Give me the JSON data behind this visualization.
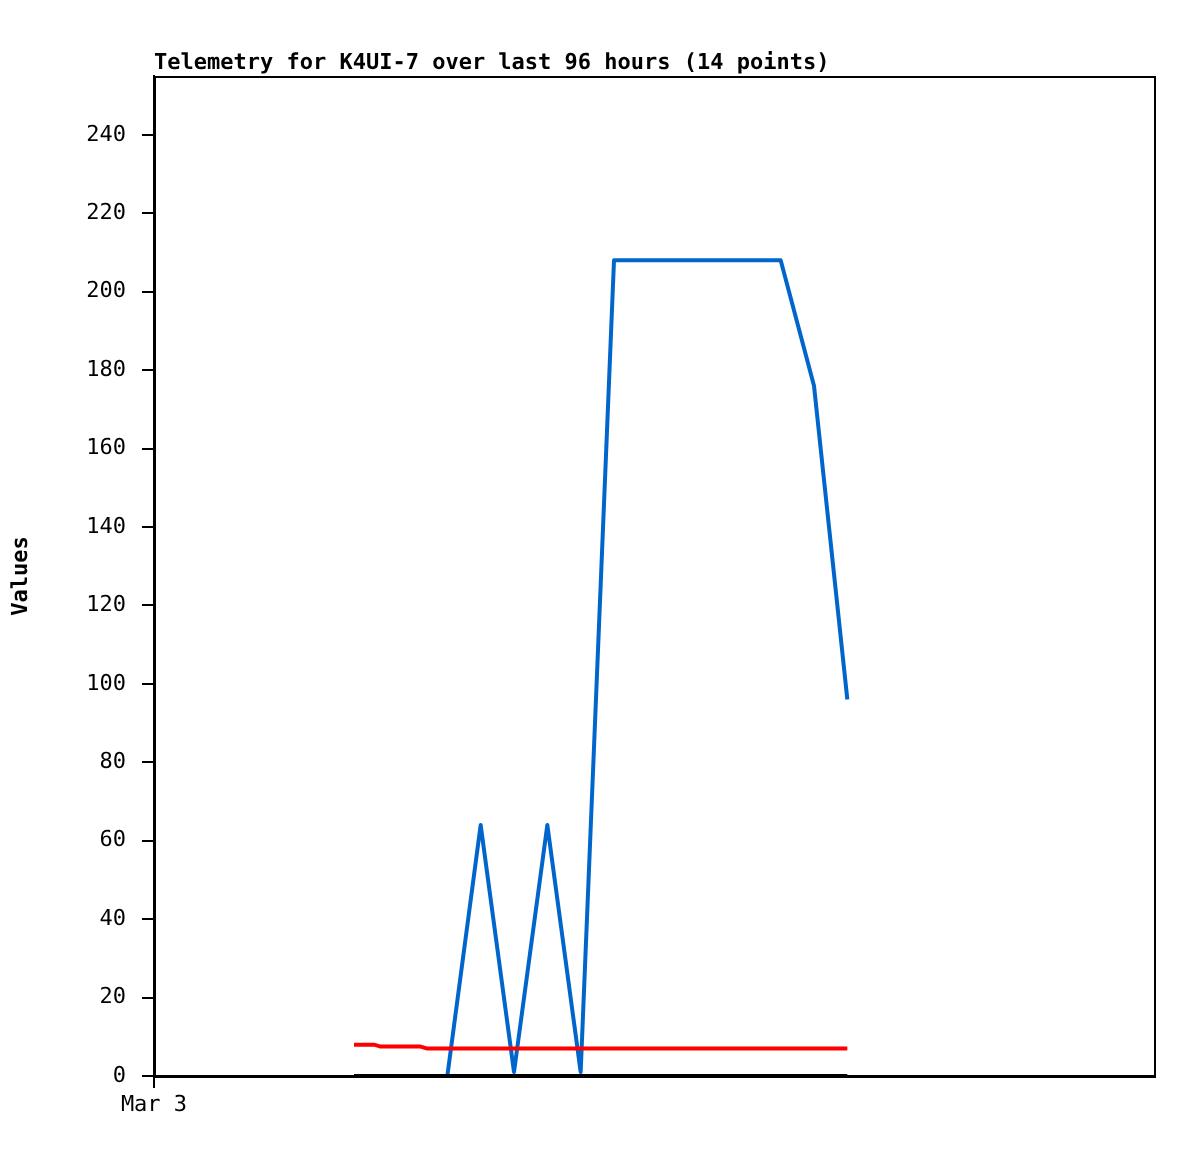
{
  "chart_data": {
    "type": "line",
    "title": "Telemetry for K4UI-7 over last 96 hours (14 points)",
    "ylabel": "Values",
    "categories": [
      "Mar 3",
      null,
      null,
      null,
      null,
      null,
      null,
      null,
      null,
      null,
      null,
      null,
      null,
      null,
      null,
      null,
      null,
      null,
      null,
      null,
      null,
      null,
      null,
      null,
      null,
      null,
      null,
      null,
      null,
      null,
      null,
      null,
      null,
      null,
      null,
      null,
      null,
      null,
      null,
      null,
      null,
      null,
      null,
      null,
      null,
      null,
      null,
      null,
      null,
      null,
      null,
      null,
      null,
      null,
      null,
      null,
      null,
      null,
      null,
      null,
      null,
      null,
      null,
      null,
      null,
      null,
      null,
      null,
      null,
      null,
      null,
      null,
      null,
      null,
      null,
      null,
      null,
      null,
      null,
      null,
      null,
      null,
      null,
      null,
      null,
      null,
      null,
      null,
      null,
      null,
      null,
      null,
      null,
      null,
      null,
      null,
      null,
      null,
      null,
      null,
      null,
      null,
      null,
      null,
      null,
      null,
      null,
      null,
      null,
      null,
      null,
      null,
      null,
      null,
      null,
      null,
      null,
      null,
      null,
      null,
      null,
      null,
      null,
      null,
      null,
      null,
      null,
      null,
      null,
      null,
      null,
      null,
      null,
      null,
      null,
      null,
      null,
      null,
      null,
      null,
      null,
      null,
      null,
      null,
      null,
      null,
      null,
      null,
      null,
      null,
      null
    ],
    "ylim": [
      0,
      255
    ],
    "yticks": [
      0,
      20,
      40,
      60,
      80,
      100,
      120,
      140,
      160,
      180,
      200,
      220,
      240
    ],
    "grid": false,
    "legend": false,
    "marker": "none",
    "line_style": "solid",
    "series": [
      {
        "color": "#000000",
        "values": [
          null,
          null,
          null,
          null,
          null,
          null,
          null,
          null,
          null,
          null,
          null,
          null,
          null,
          null,
          null,
          null,
          null,
          null,
          null,
          null,
          null,
          null,
          null,
          null,
          null,
          null,
          null,
          null,
          null,
          null,
          0,
          0,
          0,
          0,
          0,
          0,
          0,
          0,
          0,
          0,
          0,
          0,
          0,
          0,
          0,
          0,
          0,
          0,
          0,
          0,
          0,
          0,
          0,
          0,
          0,
          0,
          0,
          0,
          0,
          0,
          0,
          0,
          0,
          0,
          0,
          0,
          0,
          0,
          0,
          0,
          0,
          0,
          0,
          0,
          0,
          0,
          0,
          0,
          0,
          0,
          0,
          0,
          0,
          0,
          0,
          0,
          0,
          0,
          0,
          0,
          0,
          0,
          0,
          0,
          0,
          0,
          0,
          0,
          0,
          0,
          0,
          0,
          0,
          0,
          0,
          null,
          null,
          null,
          null,
          null,
          null,
          null,
          null,
          null,
          null,
          null,
          null,
          null,
          null,
          null,
          null,
          null,
          null,
          null,
          null,
          null,
          null,
          null,
          null,
          null,
          null,
          null,
          null,
          null,
          null,
          null,
          null,
          null,
          null,
          null,
          null,
          null,
          null,
          null,
          null,
          null,
          null,
          null,
          null,
          null,
          null
        ]
      },
      {
        "color": "#ff0000",
        "values": [
          null,
          null,
          null,
          null,
          null,
          null,
          null,
          null,
          null,
          null,
          null,
          null,
          null,
          null,
          null,
          null,
          null,
          null,
          null,
          null,
          null,
          null,
          null,
          null,
          null,
          null,
          null,
          null,
          null,
          null,
          8,
          8,
          8,
          8,
          7.5,
          7.5,
          7.5,
          7.5,
          7.5,
          7.5,
          7.5,
          7,
          7,
          7,
          7,
          7,
          7,
          7,
          7,
          7,
          7,
          7,
          7,
          7,
          7,
          7,
          7,
          7,
          7,
          7,
          7,
          7,
          7,
          7,
          7,
          7,
          7,
          7,
          7,
          7,
          7,
          7,
          7,
          7,
          7,
          7,
          7,
          7,
          7,
          7,
          7,
          7,
          7,
          7,
          7,
          7,
          7,
          7,
          7,
          7,
          7,
          7,
          7,
          7,
          7,
          7,
          7,
          7,
          7,
          7,
          7,
          7,
          7,
          7,
          7,
          null,
          null,
          null,
          null,
          null,
          null,
          null,
          null,
          null,
          null,
          null,
          null,
          null,
          null,
          null,
          null,
          null,
          null,
          null,
          null,
          null,
          null,
          null,
          null,
          null,
          null,
          null,
          null,
          null,
          null,
          null,
          null,
          null,
          null,
          null,
          null,
          null,
          null,
          null,
          null,
          null,
          null,
          null,
          null,
          null,
          null
        ]
      },
      {
        "color": "#0066cc",
        "values": [
          null,
          null,
          null,
          null,
          null,
          null,
          null,
          null,
          null,
          null,
          null,
          null,
          null,
          null,
          null,
          null,
          null,
          null,
          null,
          null,
          null,
          null,
          null,
          null,
          null,
          null,
          null,
          null,
          null,
          null,
          null,
          null,
          null,
          null,
          null,
          null,
          null,
          null,
          null,
          null,
          null,
          null,
          null,
          null,
          0,
          null,
          null,
          null,
          null,
          64,
          null,
          null,
          null,
          null,
          1,
          null,
          null,
          null,
          null,
          64,
          null,
          null,
          null,
          null,
          1,
          null,
          null,
          null,
          null,
          208,
          null,
          null,
          null,
          null,
          208,
          null,
          null,
          null,
          null,
          208,
          null,
          null,
          null,
          null,
          208,
          null,
          null,
          null,
          null,
          208,
          null,
          null,
          null,
          null,
          208,
          null,
          null,
          null,
          null,
          176,
          null,
          null,
          null,
          null,
          96,
          null,
          null,
          null,
          null,
          null,
          null,
          null,
          null,
          null,
          null,
          null,
          null,
          null,
          null,
          null,
          null,
          null,
          null,
          null,
          null,
          null,
          null,
          null,
          null,
          null,
          null,
          null,
          null,
          null,
          null,
          null,
          null,
          null,
          null,
          null,
          null,
          null,
          null,
          null,
          null,
          null,
          null,
          null,
          null,
          null,
          null
        ]
      }
    ]
  }
}
